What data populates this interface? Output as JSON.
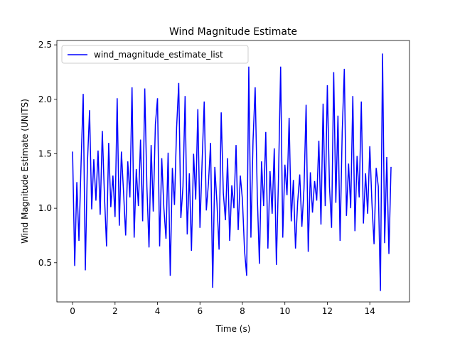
{
  "chart_data": {
    "type": "line",
    "title": "Wind Magnitude Estimate",
    "xlabel": "Time (s)",
    "ylabel": "Wind Magnitude Estimate (UNITS)",
    "x": [
      0,
      0.1,
      0.2,
      0.3,
      0.4,
      0.5,
      0.6,
      0.7,
      0.8,
      0.9,
      1,
      1.1,
      1.2,
      1.3,
      1.4,
      1.5,
      1.6,
      1.7,
      1.8,
      1.9,
      2,
      2.1,
      2.2,
      2.3,
      2.4,
      2.5,
      2.6,
      2.7,
      2.8,
      2.9,
      3,
      3.1,
      3.2,
      3.3,
      3.4,
      3.5,
      3.6,
      3.7,
      3.8,
      3.9,
      4,
      4.1,
      4.2,
      4.3,
      4.4,
      4.5,
      4.6,
      4.7,
      4.8,
      4.9,
      5,
      5.1,
      5.2,
      5.3,
      5.4,
      5.5,
      5.6,
      5.7,
      5.8,
      5.9,
      6,
      6.1,
      6.2,
      6.3,
      6.4,
      6.5,
      6.6,
      6.7,
      6.8,
      6.9,
      7,
      7.1,
      7.2,
      7.3,
      7.4,
      7.5,
      7.6,
      7.7,
      7.8,
      7.9,
      8,
      8.1,
      8.2,
      8.3,
      8.4,
      8.5,
      8.6,
      8.7,
      8.8,
      8.9,
      9,
      9.1,
      9.2,
      9.3,
      9.4,
      9.5,
      9.6,
      9.7,
      9.8,
      9.9,
      10,
      10.1,
      10.2,
      10.3,
      10.4,
      10.5,
      10.6,
      10.7,
      10.8,
      10.9,
      11,
      11.1,
      11.2,
      11.3,
      11.4,
      11.5,
      11.6,
      11.7,
      11.8,
      11.9,
      12,
      12.1,
      12.2,
      12.3,
      12.4,
      12.5,
      12.6,
      12.7,
      12.8,
      12.9,
      13,
      13.1,
      13.2,
      13.3,
      13.4,
      13.5,
      13.6,
      13.7,
      13.8,
      13.9,
      14,
      14.1,
      14.2,
      14.3,
      14.4,
      14.5,
      14.6,
      14.7,
      14.8,
      14.9,
      15
    ],
    "series": [
      {
        "name": "wind_magnitude_estimate_list",
        "color": "#0000ff",
        "values": [
          1.52,
          0.47,
          1.24,
          0.7,
          1.41,
          2.05,
          0.43,
          1.42,
          1.9,
          0.99,
          1.45,
          1.07,
          1.53,
          0.94,
          1.71,
          1.12,
          0.65,
          1.6,
          1.01,
          1.3,
          0.92,
          2.01,
          0.84,
          1.52,
          1.15,
          0.75,
          1.43,
          1.1,
          2.11,
          0.73,
          1.36,
          1.02,
          1.63,
          0.88,
          2.1,
          1.2,
          0.64,
          1.58,
          0.97,
          1.77,
          2.01,
          0.65,
          1.46,
          1.0,
          0.72,
          1.51,
          0.38,
          1.37,
          1.03,
          1.74,
          2.15,
          0.91,
          1.2,
          2.03,
          0.76,
          1.32,
          0.61,
          1.5,
          1.08,
          1.91,
          0.82,
          1.42,
          1.98,
          0.98,
          1.23,
          1.6,
          0.27,
          1.38,
          1.05,
          0.62,
          1.88,
          1.14,
          0.89,
          1.46,
          0.7,
          1.21,
          1.0,
          1.58,
          0.8,
          1.3,
          1.08,
          0.61,
          0.38,
          2.3,
          0.73,
          1.62,
          2.11,
          1.12,
          0.49,
          1.43,
          1.02,
          1.7,
          0.63,
          1.34,
          0.95,
          1.55,
          0.48,
          1.29,
          2.3,
          0.73,
          1.4,
          1.12,
          1.83,
          0.88,
          1.26,
          0.63,
          1.05,
          1.31,
          0.83,
          1.18,
          1.95,
          0.6,
          1.33,
          0.96,
          1.25,
          1.07,
          1.62,
          0.85,
          1.96,
          1.02,
          2.13,
          1.2,
          0.82,
          2.25,
          1.05,
          1.85,
          0.7,
          1.7,
          2.28,
          0.93,
          1.41,
          1.0,
          2.03,
          0.79,
          1.48,
          1.1,
          1.98,
          0.86,
          1.32,
          0.95,
          1.57,
          1.05,
          0.67,
          1.37,
          1.2,
          0.24,
          2.42,
          0.68,
          1.47,
          0.58,
          1.38
        ]
      }
    ],
    "xlim": [
      -0.74,
      15.87
    ],
    "xticks": [
      0,
      2,
      4,
      6,
      8,
      10,
      12,
      14
    ],
    "ylim": [
      0.14,
      2.54
    ],
    "yticks": [
      0.5,
      1.0,
      1.5,
      2.0,
      2.5
    ],
    "legend": "upper left"
  }
}
